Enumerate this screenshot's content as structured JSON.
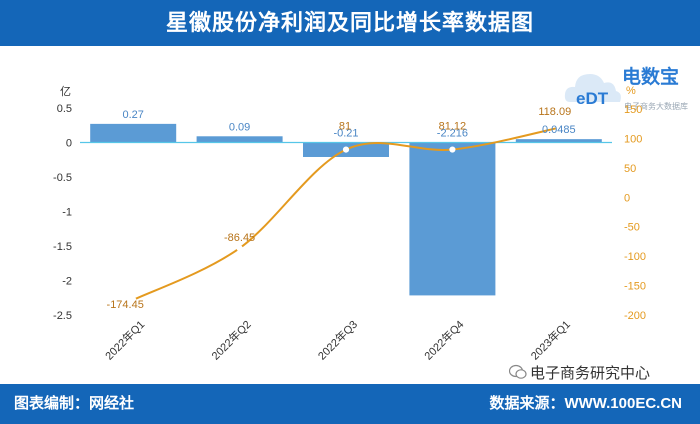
{
  "header": {
    "title": "星徽股份净利润及同比增长率数据图"
  },
  "footer": {
    "left": "图表编制：网经社",
    "right": "数据来源：WWW.100EC.CN"
  },
  "watermark": {
    "text": "电子商务研究中心",
    "icon": "wechat-icon"
  },
  "logo": {
    "text": "电数宝",
    "badge": "eDT",
    "sub": "电子商务大数据库",
    "icon": "cloud-icon"
  },
  "colors": {
    "header": "#1466b8",
    "bar": "#5b9bd5",
    "line": "#e49a1f",
    "zero_line": "#56c6e8"
  },
  "chart_data": {
    "type": "bar",
    "categories": [
      "2022年Q1",
      "2022年Q2",
      "2022年Q3",
      "2022年Q4",
      "2023年Q1"
    ],
    "series": [
      {
        "type": "bar",
        "axis": "left",
        "values": [
          0.27,
          0.09,
          -0.21,
          -2.216,
          0.0485
        ],
        "labels": [
          "0.27",
          "0.09",
          "-0.21",
          "-2.216",
          "0.0485"
        ]
      },
      {
        "type": "line",
        "axis": "right",
        "values": [
          -174.45,
          -86.45,
          81,
          81.12,
          118.09
        ],
        "labels": [
          "-174.45",
          "-86.45",
          "81",
          "81.12",
          "118.09"
        ]
      }
    ],
    "ylabel_left": "亿",
    "ylabel_right": "%",
    "ylim_left": [
      -2.5,
      0.5
    ],
    "ylim_right": [
      -200,
      150
    ],
    "yticks_left": [
      0.5,
      0,
      -0.5,
      -1,
      -1.5,
      -2,
      -2.5
    ],
    "yticks_right": [
      150,
      100,
      50,
      0,
      -50,
      -100,
      -150,
      -200
    ],
    "grid": false,
    "legend": false
  }
}
